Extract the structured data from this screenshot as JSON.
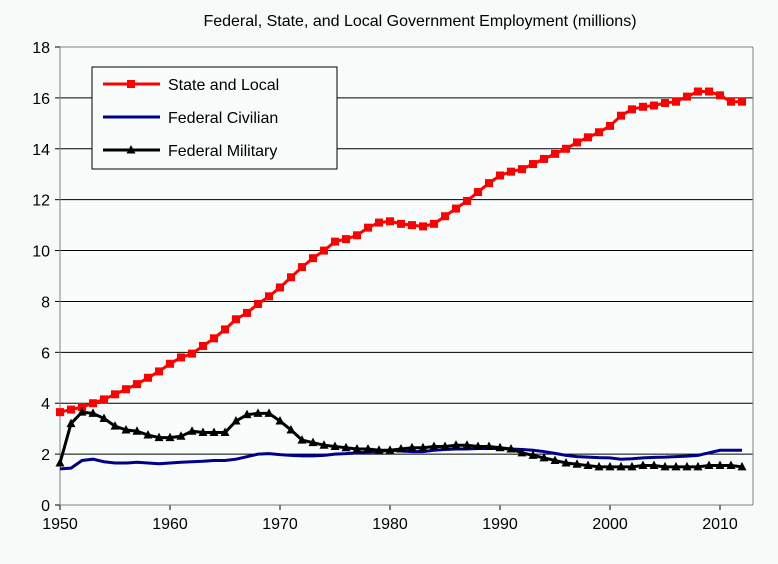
{
  "chart_data": {
    "type": "line",
    "title": "Federal, State, and Local Government Employment  (millions)",
    "xlabel": "",
    "ylabel": "",
    "xlim": [
      1950,
      2013
    ],
    "ylim": [
      0,
      18
    ],
    "grid": true,
    "legend_position": "top-left",
    "x_ticks": [
      "1950",
      "1960",
      "1970",
      "1980",
      "1990",
      "2000",
      "2010"
    ],
    "y_ticks": [
      "0",
      "2",
      "4",
      "6",
      "8",
      "10",
      "12",
      "14",
      "16",
      "18"
    ],
    "x": [
      1950,
      1951,
      1952,
      1953,
      1954,
      1955,
      1956,
      1957,
      1958,
      1959,
      1960,
      1961,
      1962,
      1963,
      1964,
      1965,
      1966,
      1967,
      1968,
      1969,
      1970,
      1971,
      1972,
      1973,
      1974,
      1975,
      1976,
      1977,
      1978,
      1979,
      1980,
      1981,
      1982,
      1983,
      1984,
      1985,
      1986,
      1987,
      1988,
      1989,
      1990,
      1991,
      1992,
      1993,
      1994,
      1995,
      1996,
      1997,
      1998,
      1999,
      2000,
      2001,
      2002,
      2003,
      2004,
      2005,
      2006,
      2007,
      2008,
      2009,
      2010,
      2011,
      2012
    ],
    "series": [
      {
        "name": "State and Local",
        "color": "#ff0000",
        "marker": "square",
        "values": [
          3.65,
          3.75,
          3.85,
          4.0,
          4.15,
          4.35,
          4.55,
          4.75,
          5.0,
          5.25,
          5.55,
          5.8,
          5.95,
          6.25,
          6.55,
          6.9,
          7.3,
          7.55,
          7.9,
          8.2,
          8.55,
          8.95,
          9.35,
          9.7,
          10.0,
          10.35,
          10.45,
          10.6,
          10.9,
          11.1,
          11.15,
          11.05,
          11.0,
          10.95,
          11.05,
          11.35,
          11.65,
          11.95,
          12.3,
          12.65,
          12.95,
          13.1,
          13.2,
          13.4,
          13.6,
          13.8,
          14.0,
          14.25,
          14.45,
          14.65,
          14.9,
          15.3,
          15.55,
          15.65,
          15.7,
          15.8,
          15.85,
          16.05,
          16.25,
          16.25,
          16.1,
          15.85,
          15.85
        ]
      },
      {
        "name": "Federal Civilian",
        "color": "#00008b",
        "marker": "none",
        "values": [
          1.42,
          1.45,
          1.75,
          1.8,
          1.7,
          1.65,
          1.65,
          1.68,
          1.65,
          1.62,
          1.65,
          1.68,
          1.7,
          1.72,
          1.75,
          1.75,
          1.8,
          1.9,
          2.0,
          2.02,
          1.98,
          1.95,
          1.93,
          1.93,
          1.95,
          2.0,
          2.02,
          2.05,
          2.08,
          2.1,
          2.15,
          2.12,
          2.1,
          2.1,
          2.15,
          2.18,
          2.2,
          2.2,
          2.22,
          2.22,
          2.22,
          2.2,
          2.18,
          2.15,
          2.1,
          2.03,
          1.95,
          1.9,
          1.88,
          1.86,
          1.85,
          1.8,
          1.82,
          1.85,
          1.87,
          1.88,
          1.9,
          1.92,
          1.95,
          2.05,
          2.15,
          2.15,
          2.15
        ]
      },
      {
        "name": "Federal Military",
        "color": "#000000",
        "marker": "triangle",
        "values": [
          1.65,
          3.2,
          3.65,
          3.6,
          3.4,
          3.1,
          2.95,
          2.9,
          2.75,
          2.65,
          2.65,
          2.7,
          2.9,
          2.85,
          2.85,
          2.85,
          3.3,
          3.55,
          3.6,
          3.6,
          3.3,
          2.95,
          2.55,
          2.45,
          2.35,
          2.3,
          2.25,
          2.2,
          2.2,
          2.15,
          2.15,
          2.2,
          2.25,
          2.25,
          2.3,
          2.3,
          2.35,
          2.35,
          2.3,
          2.3,
          2.25,
          2.2,
          2.05,
          1.95,
          1.85,
          1.75,
          1.65,
          1.6,
          1.55,
          1.5,
          1.5,
          1.5,
          1.5,
          1.55,
          1.55,
          1.5,
          1.5,
          1.5,
          1.5,
          1.55,
          1.55,
          1.55,
          1.5
        ]
      }
    ]
  }
}
